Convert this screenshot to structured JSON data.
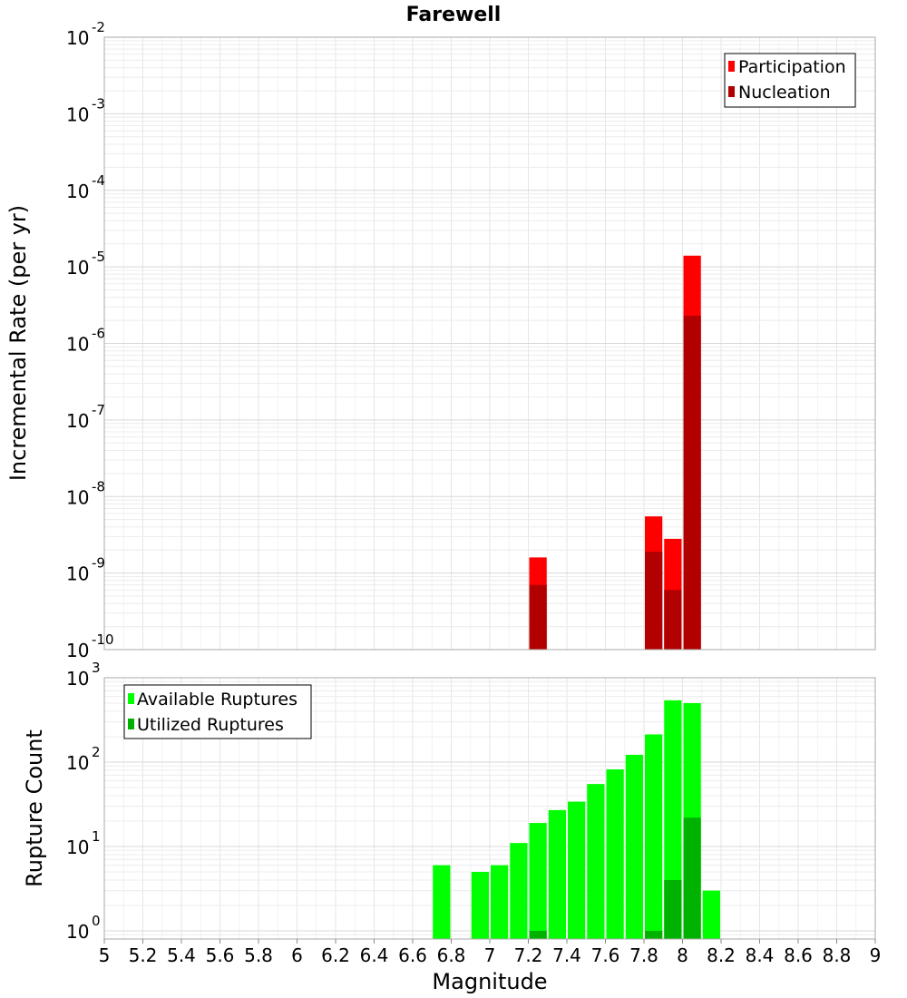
{
  "chart_data": [
    {
      "type": "bar",
      "title": "Farewell",
      "xlabel": "",
      "ylabel": "Incremental Rate (per yr)",
      "yscale": "log",
      "ylim": [
        1e-10,
        0.01
      ],
      "xlim": [
        5,
        9
      ],
      "bin_width": 0.1,
      "grid": true,
      "legend_position": "top-right",
      "y_ticks": [
        {
          "base": "10",
          "exp": "-10"
        },
        {
          "base": "10",
          "exp": "-9"
        },
        {
          "base": "10",
          "exp": "-8"
        },
        {
          "base": "10",
          "exp": "-7"
        },
        {
          "base": "10",
          "exp": "-6"
        },
        {
          "base": "10",
          "exp": "-5"
        },
        {
          "base": "10",
          "exp": "-4"
        },
        {
          "base": "10",
          "exp": "-3"
        },
        {
          "base": "10",
          "exp": "-2"
        }
      ],
      "series": [
        {
          "name": "Participation",
          "color": "#ff0000",
          "points": [
            [
              7.25,
              1.6e-09
            ],
            [
              7.85,
              5.5e-09
            ],
            [
              7.95,
              2.8e-09
            ],
            [
              8.05,
              1.4e-05
            ]
          ]
        },
        {
          "name": "Nucleation",
          "color": "#b20000",
          "points": [
            [
              7.25,
              7e-10
            ],
            [
              7.85,
              1.9e-09
            ],
            [
              7.95,
              6e-10
            ],
            [
              8.05,
              2.3e-06
            ]
          ]
        }
      ]
    },
    {
      "type": "bar",
      "title": "",
      "xlabel": "Magnitude",
      "ylabel": "Rupture Count",
      "yscale": "log",
      "ylim": [
        0.8,
        1000
      ],
      "xlim": [
        5,
        9
      ],
      "bin_width": 0.1,
      "grid": true,
      "legend_position": "top-left",
      "x_ticks": [
        "5",
        "5.2",
        "5.4",
        "5.6",
        "5.8",
        "6",
        "6.2",
        "6.4",
        "6.6",
        "6.8",
        "7",
        "7.2",
        "7.4",
        "7.6",
        "7.8",
        "8",
        "8.2",
        "8.4",
        "8.6",
        "8.8",
        "9"
      ],
      "y_ticks": [
        {
          "base": "10",
          "exp": "0"
        },
        {
          "base": "10",
          "exp": "1"
        },
        {
          "base": "10",
          "exp": "2"
        },
        {
          "base": "10",
          "exp": "3"
        }
      ],
      "series": [
        {
          "name": "Available Ruptures",
          "color": "#00ff00",
          "points": [
            [
              6.75,
              6
            ],
            [
              6.95,
              5
            ],
            [
              7.05,
              6
            ],
            [
              7.15,
              11
            ],
            [
              7.25,
              19
            ],
            [
              7.35,
              27
            ],
            [
              7.45,
              34
            ],
            [
              7.55,
              55
            ],
            [
              7.65,
              82
            ],
            [
              7.75,
              122
            ],
            [
              7.85,
              213
            ],
            [
              7.95,
              540
            ],
            [
              8.05,
              500
            ],
            [
              8.15,
              3
            ]
          ]
        },
        {
          "name": "Utilized Ruptures",
          "color": "#00b200",
          "points": [
            [
              7.25,
              1
            ],
            [
              7.85,
              1
            ],
            [
              7.95,
              4
            ],
            [
              8.05,
              22
            ]
          ]
        }
      ]
    }
  ]
}
